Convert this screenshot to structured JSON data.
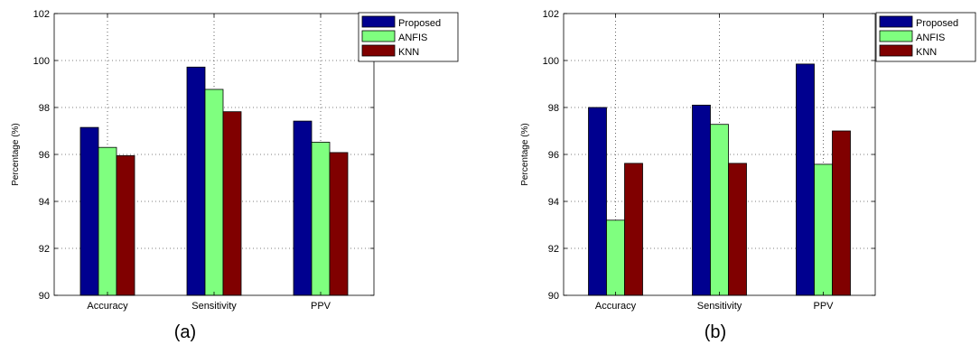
{
  "chart_data": [
    {
      "type": "bar",
      "caption": "(a)",
      "categories": [
        "Accuracy",
        "Sensitivity",
        "PPV"
      ],
      "series": [
        {
          "name": "Proposed",
          "values": [
            97.15,
            99.72,
            97.42
          ],
          "color": "#00008f"
        },
        {
          "name": "ANFIS",
          "values": [
            96.3,
            98.77,
            96.52
          ],
          "color": "#7fff7f"
        },
        {
          "name": "KNN",
          "values": [
            95.95,
            97.82,
            96.08
          ],
          "color": "#800000"
        }
      ],
      "ylabel": "Percentage (%)",
      "ylim": [
        90,
        102
      ],
      "yticks": [
        "90",
        "92",
        "94",
        "96",
        "98",
        "100",
        "102"
      ],
      "grid": true,
      "legend": "outside-top-right"
    },
    {
      "type": "bar",
      "caption": "(b)",
      "categories": [
        "Accuracy",
        "Sensitivity",
        "PPV"
      ],
      "series": [
        {
          "name": "Proposed",
          "values": [
            98.0,
            98.1,
            99.85
          ],
          "color": "#00008f"
        },
        {
          "name": "ANFIS",
          "values": [
            93.2,
            97.28,
            95.58
          ],
          "color": "#7fff7f"
        },
        {
          "name": "KNN",
          "values": [
            95.62,
            95.62,
            97.0
          ],
          "color": "#800000"
        }
      ],
      "ylabel": "Percentage (%)",
      "ylim": [
        90,
        102
      ],
      "yticks": [
        "90",
        "92",
        "94",
        "96",
        "98",
        "100",
        "102"
      ],
      "grid": true,
      "legend": "outside-top-right"
    }
  ]
}
